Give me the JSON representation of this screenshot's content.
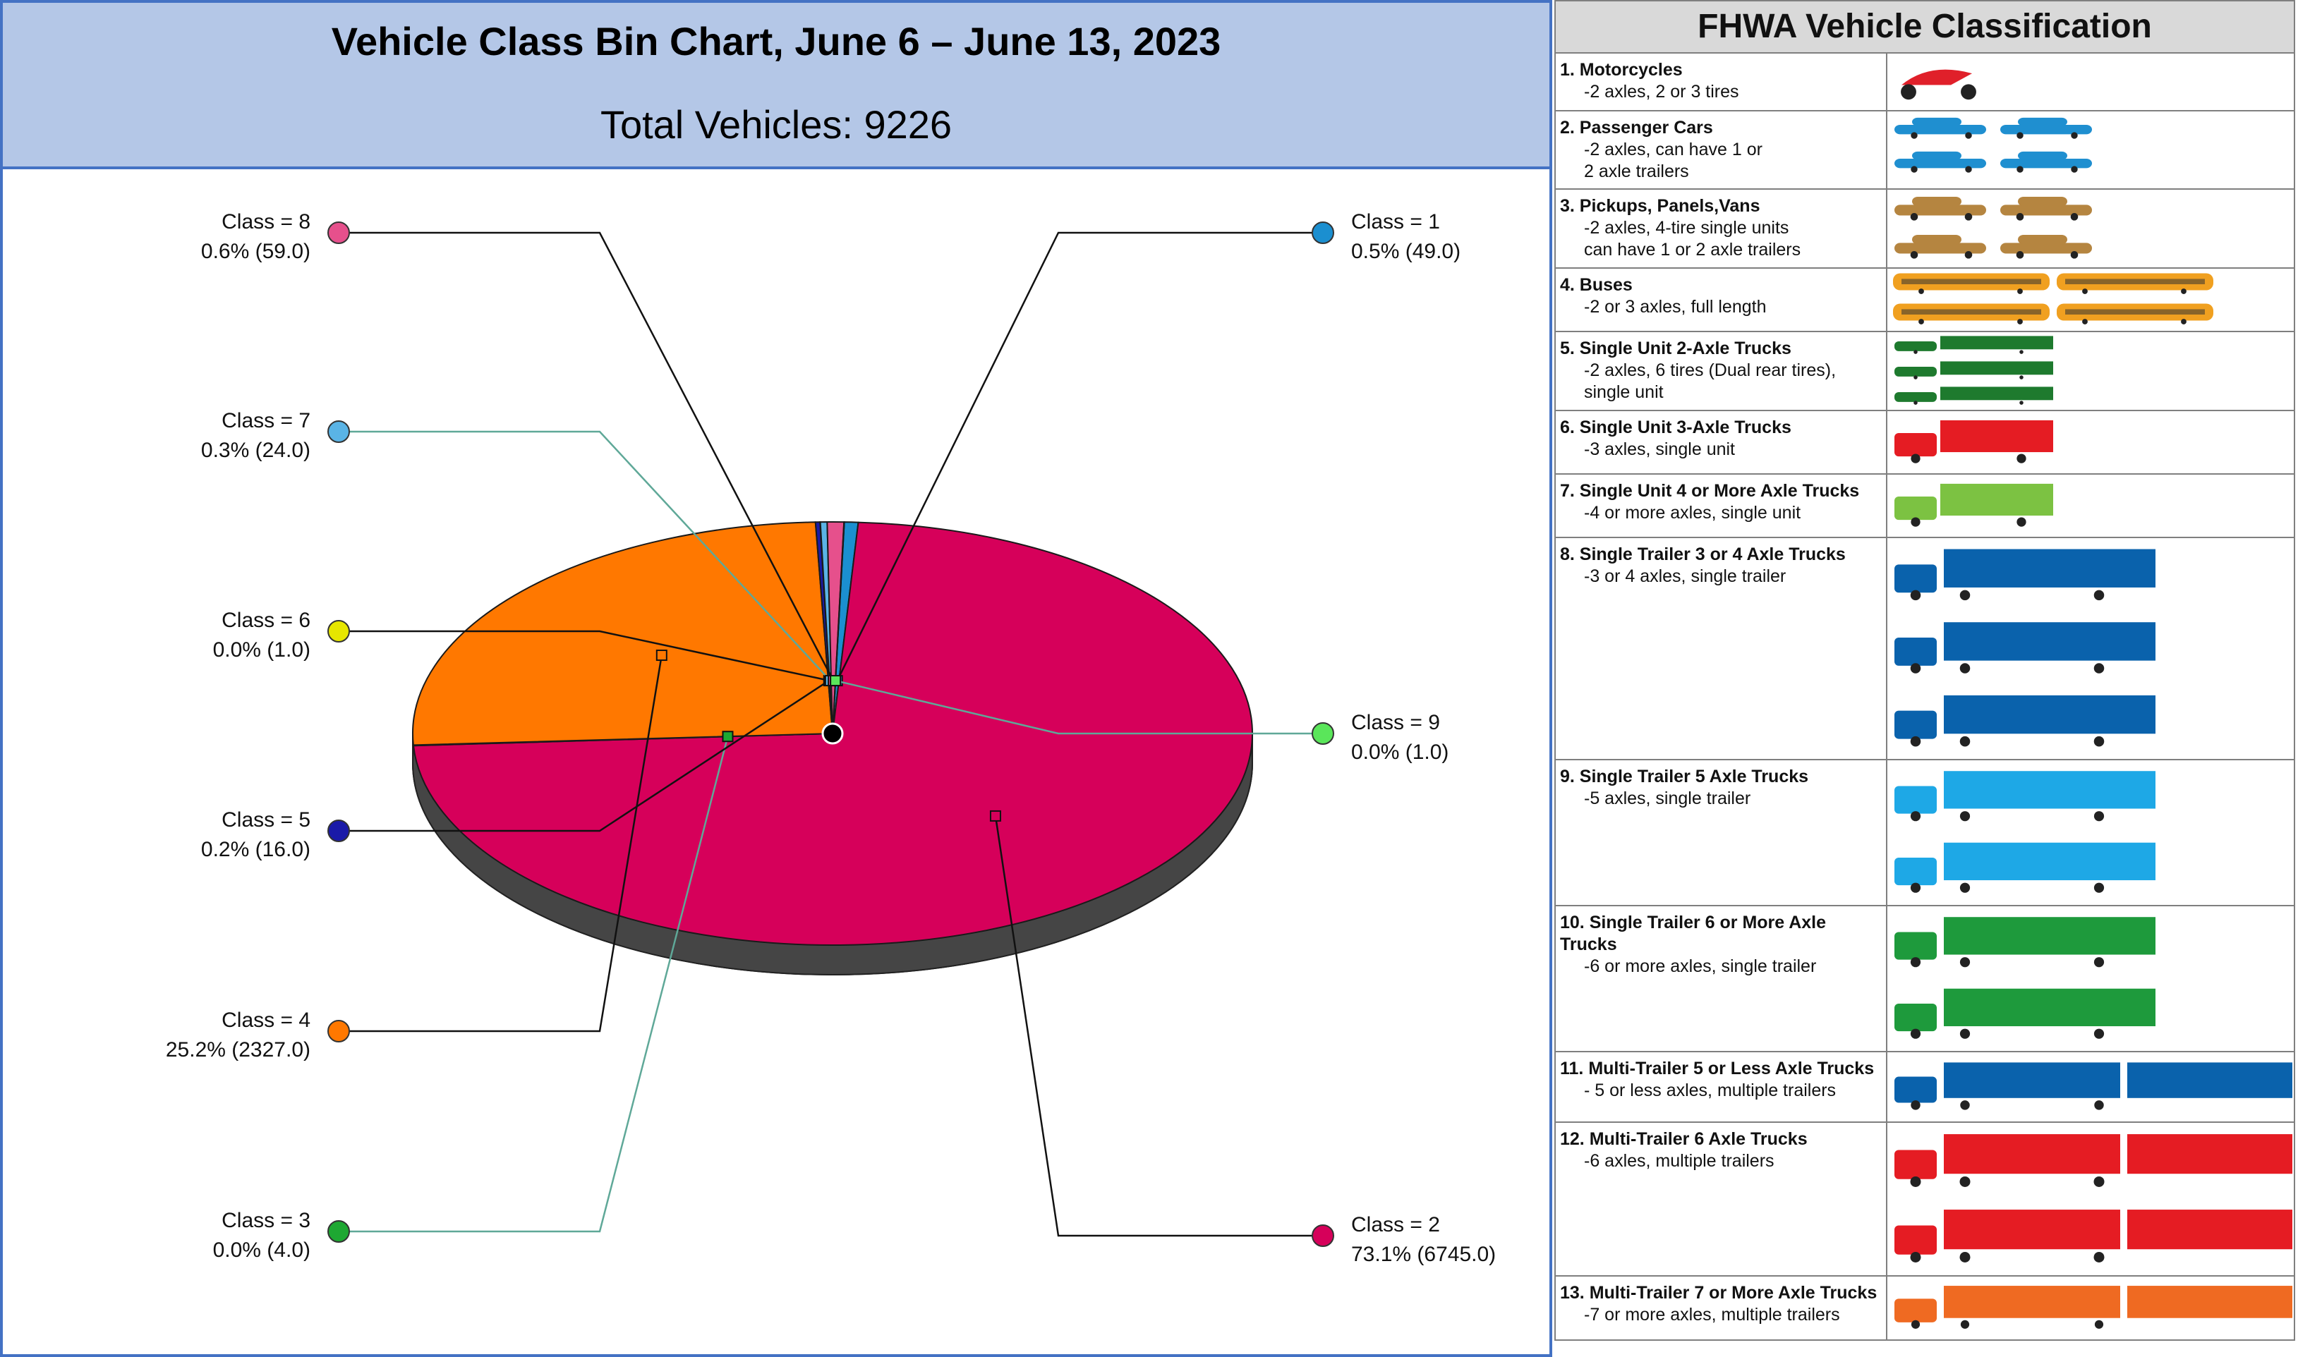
{
  "header": {
    "title": "Vehicle Class Bin Chart, June 6 – June 13, 2023",
    "subtitle": "Total Vehicles: 9226"
  },
  "chart_data": {
    "type": "pie",
    "title": "Vehicle Class Bin Chart, June 6 – June 13, 2023",
    "subtitle": "Total Vehicles: 9226",
    "slices": [
      {
        "label": "Class = 1",
        "value": 49.0,
        "percent": 0.5,
        "value_text": "0.5% (49.0)",
        "color": "#1b8fd0"
      },
      {
        "label": "Class = 2",
        "value": 6745.0,
        "percent": 73.1,
        "value_text": "73.1% (6745.0)",
        "color": "#d6005a"
      },
      {
        "label": "Class = 3",
        "value": 4.0,
        "percent": 0.0,
        "value_text": "0.0% (4.0)",
        "color": "#1ea832"
      },
      {
        "label": "Class = 4",
        "value": 2327.0,
        "percent": 25.2,
        "value_text": "25.2% (2327.0)",
        "color": "#ff7800"
      },
      {
        "label": "Class = 5",
        "value": 16.0,
        "percent": 0.2,
        "value_text": "0.2% (16.0)",
        "color": "#1a1aa8"
      },
      {
        "label": "Class = 6",
        "value": 1.0,
        "percent": 0.0,
        "value_text": "0.0% (1.0)",
        "color": "#e6e600"
      },
      {
        "label": "Class = 7",
        "value": 24.0,
        "percent": 0.3,
        "value_text": "0.3% (24.0)",
        "color": "#5ab4e6"
      },
      {
        "label": "Class = 8",
        "value": 59.0,
        "percent": 0.6,
        "value_text": "0.6% (59.0)",
        "color": "#e6508c"
      },
      {
        "label": "Class = 9",
        "value": 1.0,
        "percent": 0.0,
        "value_text": "0.0% (1.0)",
        "color": "#5ae65a"
      }
    ],
    "shadow_color": "#454545"
  },
  "fhwa": {
    "title": "FHWA Vehicle Classification",
    "classes": [
      {
        "title": "1. Motorcycles",
        "lines": [
          "-2 axles, 2 or 3 tires"
        ],
        "icon": "motorcycle-icon",
        "color": "#e0202a"
      },
      {
        "title": "2. Passenger Cars",
        "lines": [
          "-2 axles, can have 1 or",
          "2 axle trailers"
        ],
        "icon": "car-icon",
        "color": "#1f8fd0"
      },
      {
        "title": "3. Pickups, Panels,Vans",
        "lines": [
          "-2 axles, 4-tire single units",
          "can have 1 or 2 axle trailers"
        ],
        "icon": "van-icon",
        "color": "#b58540"
      },
      {
        "title": "4. Buses",
        "lines": [
          "-2 or 3 axles, full length"
        ],
        "icon": "bus-icon",
        "color": "#f0a020"
      },
      {
        "title": "5. Single Unit 2-Axle Trucks",
        "lines": [
          "-2 axles, 6 tires (Dual rear tires),",
          "single unit"
        ],
        "icon": "truck-2axle-icon",
        "color": "#1e7a2e"
      },
      {
        "title": "6. Single Unit 3-Axle Trucks",
        "lines": [
          "-3 axles, single unit"
        ],
        "icon": "truck-3axle-icon",
        "color": "#e51c23"
      },
      {
        "title": "7. Single Unit 4 or More Axle Trucks",
        "lines": [
          "-4 or more axles, single unit"
        ],
        "icon": "truck-4axle-icon",
        "color": "#7cc242"
      },
      {
        "title": "8. Single Trailer 3 or 4 Axle Trucks",
        "lines": [
          "-3 or 4 axles, single trailer"
        ],
        "icon": "semi-trailer-icon",
        "color": "#0a62ac"
      },
      {
        "title": "9. Single Trailer 5 Axle Trucks",
        "lines": [
          "-5 axles, single trailer"
        ],
        "icon": "semi-trailer-icon",
        "color": "#1ea8e6"
      },
      {
        "title": "10. Single Trailer 6 or More Axle Trucks",
        "lines": [
          "-6 or more axles, single trailer"
        ],
        "icon": "semi-trailer-icon",
        "color": "#1e9a3c"
      },
      {
        "title": "11. Multi-Trailer 5 or Less Axle Trucks",
        "lines": [
          "- 5 or less axles, multiple trailers"
        ],
        "icon": "double-trailer-icon",
        "color": "#0a62ac"
      },
      {
        "title": "12. Multi-Trailer 6 Axle Trucks",
        "lines": [
          "-6 axles, multiple trailers"
        ],
        "icon": "double-trailer-icon",
        "color": "#e51c23"
      },
      {
        "title": "13. Multi-Trailer 7 or More Axle Trucks",
        "lines": [
          "-7 or more axles, multiple trailers"
        ],
        "icon": "double-trailer-icon",
        "color": "#ef6a22"
      }
    ]
  }
}
